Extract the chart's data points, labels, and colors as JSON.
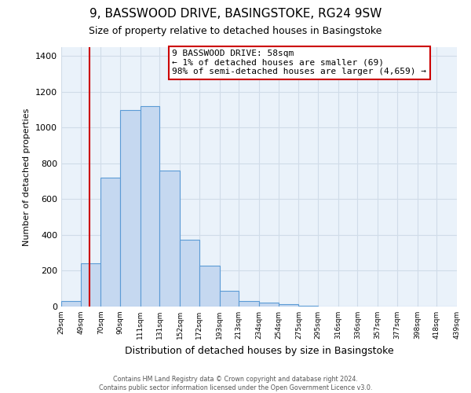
{
  "title": "9, BASSWOOD DRIVE, BASINGSTOKE, RG24 9SW",
  "subtitle": "Size of property relative to detached houses in Basingstoke",
  "xlabel": "Distribution of detached houses by size in Basingstoke",
  "ylabel": "Number of detached properties",
  "bin_labels": [
    "29sqm",
    "49sqm",
    "70sqm",
    "90sqm",
    "111sqm",
    "131sqm",
    "152sqm",
    "172sqm",
    "193sqm",
    "213sqm",
    "234sqm",
    "254sqm",
    "275sqm",
    "295sqm",
    "316sqm",
    "336sqm",
    "357sqm",
    "377sqm",
    "398sqm",
    "418sqm",
    "439sqm"
  ],
  "bin_edges": [
    29,
    49,
    70,
    90,
    111,
    131,
    152,
    172,
    193,
    213,
    234,
    254,
    275,
    295,
    316,
    336,
    357,
    377,
    398,
    418,
    439
  ],
  "bar_heights": [
    30,
    240,
    720,
    1100,
    1120,
    760,
    375,
    230,
    90,
    30,
    20,
    15,
    5,
    2,
    1,
    1,
    0,
    0,
    0,
    0
  ],
  "bar_color": "#c5d8f0",
  "bar_edge_color": "#5b9bd5",
  "property_line_x": 58,
  "property_line_color": "#cc0000",
  "ylim": [
    0,
    1450
  ],
  "yticks": [
    0,
    200,
    400,
    600,
    800,
    1000,
    1200,
    1400
  ],
  "annotation_title": "9 BASSWOOD DRIVE: 58sqm",
  "annotation_line1": "← 1% of detached houses are smaller (69)",
  "annotation_line2": "98% of semi-detached houses are larger (4,659) →",
  "annotation_box_color": "#ffffff",
  "annotation_box_edge_color": "#cc0000",
  "grid_color": "#d0dce8",
  "background_color": "#eaf2fa",
  "fig_background_color": "#ffffff",
  "footer_line1": "Contains HM Land Registry data © Crown copyright and database right 2024.",
  "footer_line2": "Contains public sector information licensed under the Open Government Licence v3.0."
}
